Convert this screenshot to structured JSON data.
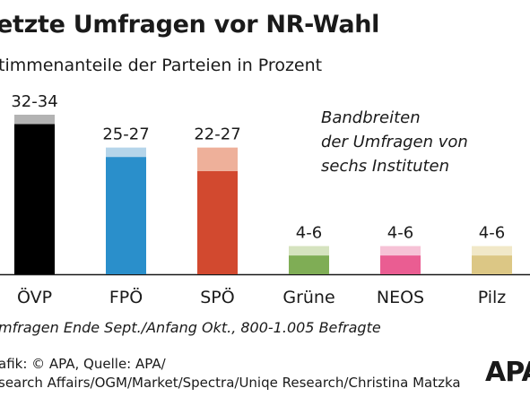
{
  "chart_data": {
    "type": "bar",
    "title": "etzte Umfragen vor NR-Wahl",
    "subtitle": "timmenanteile der Parteien in Prozent",
    "annotation": [
      "Bandbreiten",
      "der Umfragen von",
      "sechs Instituten"
    ],
    "categories": [
      "ÖVP",
      "FPÖ",
      "SPÖ",
      "Grüne",
      "NEOS",
      "Pilz"
    ],
    "range_labels": [
      "32-34",
      "25-27",
      "22-27",
      "4-6",
      "4-6",
      "4-6"
    ],
    "low": [
      32,
      25,
      22,
      4,
      4,
      4
    ],
    "high": [
      34,
      27,
      27,
      6,
      6,
      6
    ],
    "colors": [
      "#000000",
      "#2a8fcb",
      "#d2492f",
      "#7fad55",
      "#ea5d92",
      "#dcc785"
    ],
    "range_colors": [
      "#b3b3b3",
      "#b5d5ea",
      "#eeb09a",
      "#d5e3bf",
      "#f6c2d6",
      "#f1e8c8"
    ],
    "ylim": [
      0,
      34
    ],
    "footnote": "mfragen Ende Sept./Anfang Okt., 800-1.005 Befragte"
  },
  "credit": {
    "line1": "afik: © APA, Quelle: APA/",
    "line2": "search Affairs/OGM/Market/Spectra/Uniqe Research/Christina Matzka"
  },
  "logo": "APA"
}
